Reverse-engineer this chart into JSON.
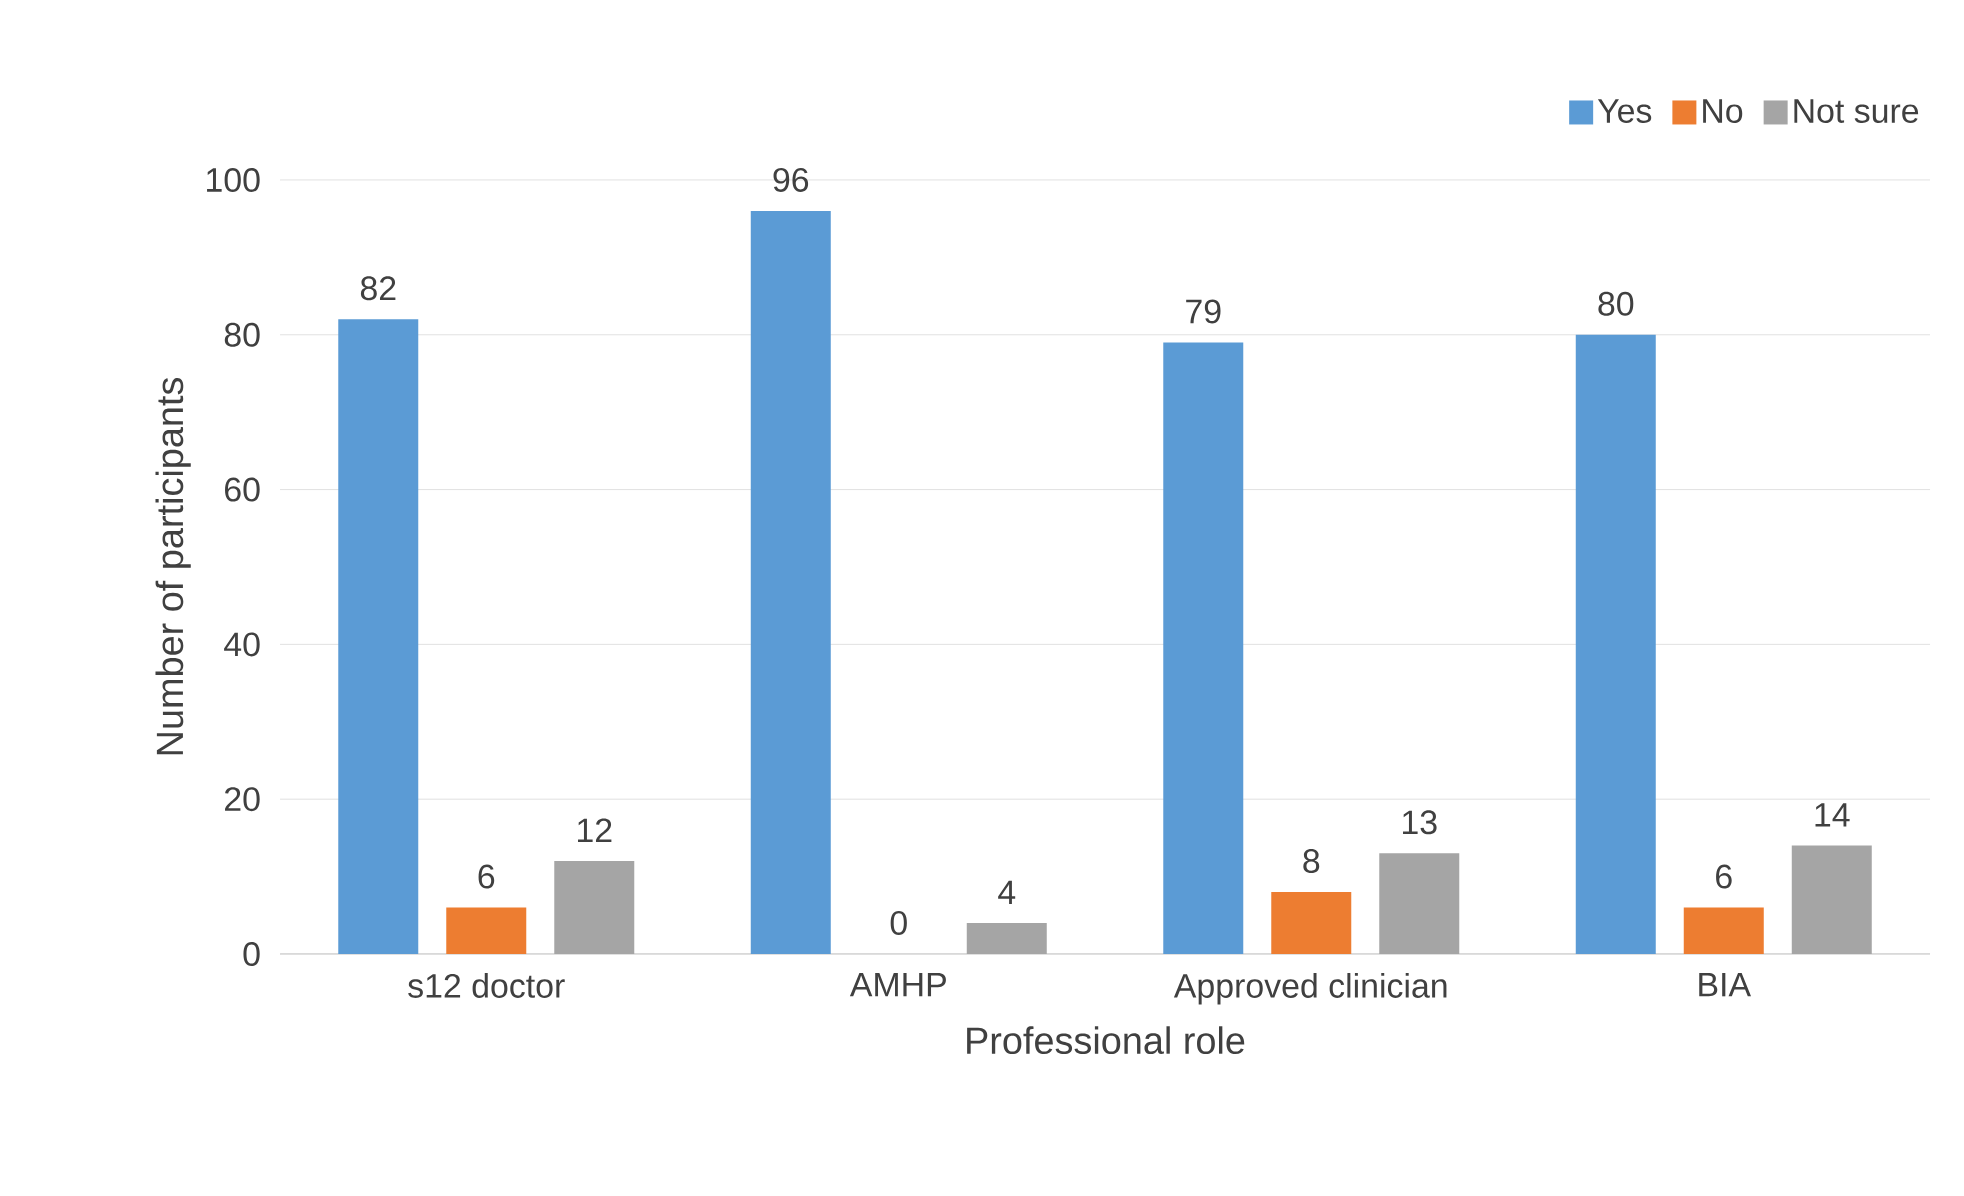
{
  "chart_data": {
    "type": "bar",
    "xlabel": "Professional role",
    "ylabel": "Number of participants",
    "categories": [
      "s12 doctor",
      "AMHP",
      "Approved clinician",
      "BIA"
    ],
    "series": [
      {
        "name": "Yes",
        "color": "#5b9bd5",
        "values": [
          82,
          96,
          79,
          80
        ]
      },
      {
        "name": "No",
        "color": "#ed7d31",
        "values": [
          6,
          0,
          8,
          6
        ]
      },
      {
        "name": "Not sure",
        "color": "#a5a5a5",
        "values": [
          12,
          4,
          13,
          14
        ]
      }
    ],
    "ylim": [
      0,
      100
    ],
    "yticks": [
      0,
      20,
      40,
      60,
      80,
      100
    ],
    "grid": "y",
    "legend": "top right",
    "data_labels": true
  }
}
